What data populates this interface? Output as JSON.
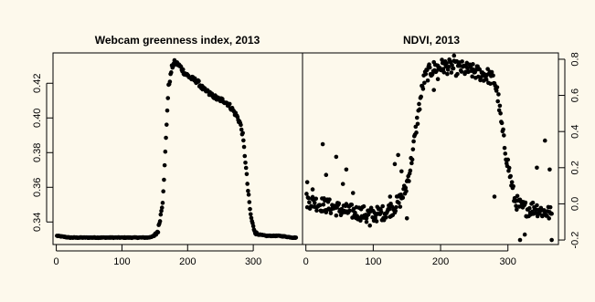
{
  "chart_data": [
    {
      "type": "scatter",
      "title": "Webcam greenness index, 2013",
      "xlabel": "",
      "ylabel": "",
      "xlim": [
        -5,
        375
      ],
      "ylim": [
        0.327,
        0.4375
      ],
      "x_ticks": [
        "0",
        "100",
        "200",
        "300"
      ],
      "y_ticks": [
        "0.34",
        "0.36",
        "0.38",
        "0.40",
        "0.42"
      ],
      "y_tick_values": [
        0.34,
        0.36,
        0.38,
        0.4,
        0.42
      ],
      "x_tick_values": [
        0,
        100,
        200,
        300
      ],
      "y_axis_side": "left",
      "keypoints": [
        [
          1,
          0.332
        ],
        [
          20,
          0.331
        ],
        [
          40,
          0.331
        ],
        [
          60,
          0.331
        ],
        [
          80,
          0.331
        ],
        [
          100,
          0.331
        ],
        [
          120,
          0.331
        ],
        [
          140,
          0.331
        ],
        [
          150,
          0.332
        ],
        [
          155,
          0.335
        ],
        [
          159,
          0.344
        ],
        [
          162,
          0.352
        ],
        [
          165,
          0.372
        ],
        [
          167,
          0.388
        ],
        [
          169,
          0.405
        ],
        [
          171,
          0.418
        ],
        [
          173,
          0.422
        ],
        [
          176,
          0.429
        ],
        [
          180,
          0.432
        ],
        [
          185,
          0.431
        ],
        [
          190,
          0.429
        ],
        [
          195,
          0.426
        ],
        [
          205,
          0.423
        ],
        [
          215,
          0.421
        ],
        [
          225,
          0.416
        ],
        [
          235,
          0.414
        ],
        [
          245,
          0.411
        ],
        [
          255,
          0.41
        ],
        [
          262,
          0.408
        ],
        [
          268,
          0.405
        ],
        [
          275,
          0.401
        ],
        [
          280,
          0.397
        ],
        [
          284,
          0.39
        ],
        [
          288,
          0.375
        ],
        [
          292,
          0.358
        ],
        [
          296,
          0.344
        ],
        [
          300,
          0.337
        ],
        [
          305,
          0.333
        ],
        [
          320,
          0.332
        ],
        [
          340,
          0.332
        ],
        [
          360,
          0.331
        ]
      ]
    },
    {
      "type": "scatter",
      "title": "NDVI, 2013",
      "xlabel": "",
      "ylabel": "",
      "xlim": [
        -5,
        375
      ],
      "ylim": [
        -0.225,
        0.835
      ],
      "x_ticks": [
        "0",
        "100",
        "200",
        "300"
      ],
      "y_ticks": [
        "-0.2",
        "0.0",
        "0.2",
        "0.4",
        "0.6",
        "0.8"
      ],
      "y_tick_values": [
        -0.2,
        0.0,
        0.2,
        0.4,
        0.6,
        0.8
      ],
      "x_tick_values": [
        0,
        100,
        200,
        300
      ],
      "y_axis_side": "right",
      "keypoints": [
        [
          1,
          0.02
        ],
        [
          20,
          0.0
        ],
        [
          40,
          -0.02
        ],
        [
          60,
          -0.04
        ],
        [
          80,
          -0.05
        ],
        [
          100,
          -0.06
        ],
        [
          115,
          -0.05
        ],
        [
          130,
          -0.02
        ],
        [
          140,
          0.02
        ],
        [
          148,
          0.08
        ],
        [
          155,
          0.2
        ],
        [
          160,
          0.32
        ],
        [
          165,
          0.45
        ],
        [
          170,
          0.58
        ],
        [
          175,
          0.68
        ],
        [
          180,
          0.72
        ],
        [
          190,
          0.75
        ],
        [
          200,
          0.76
        ],
        [
          210,
          0.76
        ],
        [
          220,
          0.75
        ],
        [
          230,
          0.75
        ],
        [
          240,
          0.74
        ],
        [
          250,
          0.73
        ],
        [
          260,
          0.72
        ],
        [
          270,
          0.71
        ],
        [
          280,
          0.68
        ],
        [
          285,
          0.6
        ],
        [
          290,
          0.45
        ],
        [
          295,
          0.32
        ],
        [
          300,
          0.22
        ],
        [
          305,
          0.12
        ],
        [
          310,
          0.02
        ],
        [
          320,
          -0.02
        ],
        [
          330,
          -0.03
        ],
        [
          340,
          -0.02
        ],
        [
          350,
          -0.04
        ],
        [
          360,
          -0.05
        ],
        [
          365,
          -0.06
        ]
      ],
      "outliers": [
        [
          2,
          0.12
        ],
        [
          10,
          0.08
        ],
        [
          25,
          0.33
        ],
        [
          30,
          0.16
        ],
        [
          45,
          0.26
        ],
        [
          55,
          0.11
        ],
        [
          60,
          0.19
        ],
        [
          70,
          0.06
        ],
        [
          90,
          -0.1
        ],
        [
          95,
          -0.12
        ],
        [
          125,
          0.04
        ],
        [
          132,
          0.22
        ],
        [
          137,
          0.27
        ],
        [
          142,
          0.18
        ],
        [
          150,
          -0.08
        ],
        [
          190,
          0.63
        ],
        [
          196,
          0.69
        ],
        [
          220,
          0.82
        ],
        [
          280,
          0.04
        ],
        [
          318,
          -0.2
        ],
        [
          325,
          -0.17
        ],
        [
          343,
          0.2
        ],
        [
          355,
          0.35
        ],
        [
          362,
          0.19
        ],
        [
          365,
          -0.2
        ]
      ]
    }
  ]
}
